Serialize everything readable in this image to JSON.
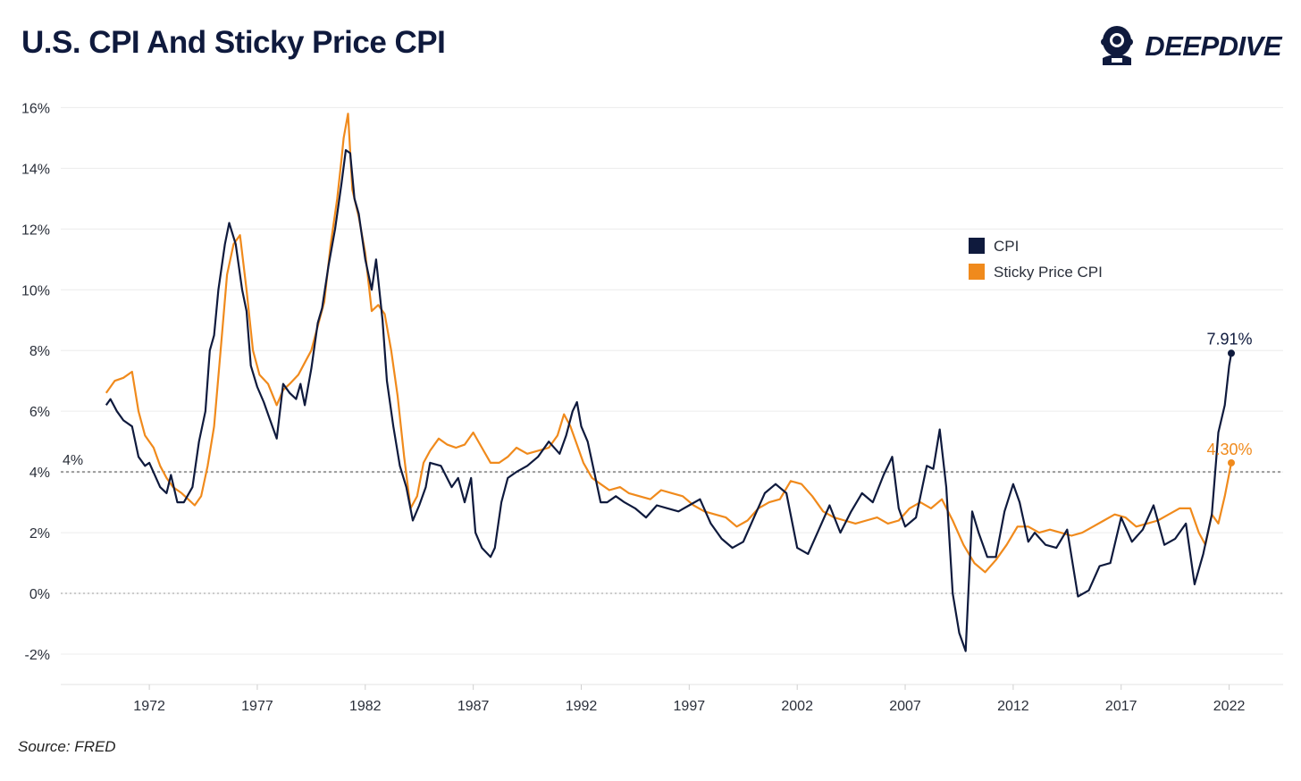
{
  "header": {
    "title": "U.S. CPI And Sticky Price CPI",
    "brand": "DEEPDIVE",
    "logo_icon": "diver-helmet-icon"
  },
  "footer": {
    "source": "Source: FRED"
  },
  "colors": {
    "cpi": "#0f1a3d",
    "sticky": "#f08a1c",
    "grid": "#ececec",
    "ref": "#9a9a9a"
  },
  "chart_data": {
    "type": "line",
    "title": "U.S. CPI And Sticky Price CPI",
    "xlabel": "",
    "ylabel": "",
    "xlim": [
      1967.9,
      2024.5
    ],
    "ylim": [
      -3,
      16.6
    ],
    "grid": true,
    "legend_position": "upper-right-inside",
    "x_ticks": [
      1972,
      1977,
      1982,
      1987,
      1992,
      1997,
      2002,
      2007,
      2012,
      2017,
      2022
    ],
    "y_ticks": [
      -2,
      0,
      2,
      4,
      6,
      8,
      10,
      12,
      14,
      16
    ],
    "y_tick_labels": [
      "-2%",
      "0%",
      "2%",
      "4%",
      "6%",
      "8%",
      "10%",
      "12%",
      "14%",
      "16%"
    ],
    "reference_lines": [
      {
        "y": 4,
        "label": "4%",
        "style": "dotted"
      },
      {
        "y": 0,
        "label": "",
        "style": "dotted"
      }
    ],
    "series": [
      {
        "name": "CPI",
        "color": "#0f1a3d",
        "end_label": "7.91%",
        "points": [
          [
            1970.0,
            6.2
          ],
          [
            1970.2,
            6.4
          ],
          [
            1970.5,
            6.0
          ],
          [
            1970.8,
            5.7
          ],
          [
            1971.2,
            5.5
          ],
          [
            1971.5,
            4.5
          ],
          [
            1971.8,
            4.2
          ],
          [
            1972.0,
            4.3
          ],
          [
            1972.5,
            3.5
          ],
          [
            1972.8,
            3.3
          ],
          [
            1973.0,
            3.9
          ],
          [
            1973.3,
            3.0
          ],
          [
            1973.6,
            3.0
          ],
          [
            1974.0,
            3.5
          ],
          [
            1974.3,
            5.0
          ],
          [
            1974.6,
            6.0
          ],
          [
            1974.8,
            8.0
          ],
          [
            1975.0,
            8.5
          ],
          [
            1975.2,
            10.0
          ],
          [
            1975.5,
            11.5
          ],
          [
            1975.7,
            12.2
          ],
          [
            1976.0,
            11.5
          ],
          [
            1976.3,
            10.0
          ],
          [
            1976.5,
            9.3
          ],
          [
            1976.7,
            7.5
          ],
          [
            1977.0,
            6.8
          ],
          [
            1977.3,
            6.3
          ],
          [
            1977.6,
            5.7
          ],
          [
            1977.9,
            5.1
          ],
          [
            1978.2,
            6.9
          ],
          [
            1978.5,
            6.6
          ],
          [
            1978.8,
            6.4
          ],
          [
            1979.0,
            6.9
          ],
          [
            1979.2,
            6.2
          ],
          [
            1979.5,
            7.4
          ],
          [
            1979.8,
            8.9
          ],
          [
            1980.0,
            9.4
          ],
          [
            1980.3,
            10.8
          ],
          [
            1980.6,
            12.0
          ],
          [
            1980.9,
            13.5
          ],
          [
            1981.1,
            14.6
          ],
          [
            1981.3,
            14.5
          ],
          [
            1981.5,
            13.0
          ],
          [
            1981.7,
            12.5
          ],
          [
            1982.0,
            11.0
          ],
          [
            1982.3,
            10.0
          ],
          [
            1982.5,
            11.0
          ],
          [
            1982.8,
            9.0
          ],
          [
            1983.0,
            7.0
          ],
          [
            1983.3,
            5.5
          ],
          [
            1983.6,
            4.2
          ],
          [
            1983.9,
            3.5
          ],
          [
            1984.2,
            2.4
          ],
          [
            1984.5,
            2.9
          ],
          [
            1984.8,
            3.5
          ],
          [
            1985.0,
            4.3
          ],
          [
            1985.5,
            4.2
          ],
          [
            1986.0,
            3.5
          ],
          [
            1986.3,
            3.8
          ],
          [
            1986.6,
            3.0
          ],
          [
            1986.9,
            3.8
          ],
          [
            1987.1,
            2.0
          ],
          [
            1987.4,
            1.5
          ],
          [
            1987.8,
            1.2
          ],
          [
            1988.0,
            1.5
          ],
          [
            1988.3,
            3.0
          ],
          [
            1988.6,
            3.8
          ],
          [
            1989.0,
            4.0
          ],
          [
            1989.5,
            4.2
          ],
          [
            1990.0,
            4.5
          ],
          [
            1990.5,
            5.0
          ],
          [
            1991.0,
            4.6
          ],
          [
            1991.3,
            5.2
          ],
          [
            1991.6,
            6.0
          ],
          [
            1991.8,
            6.3
          ],
          [
            1992.0,
            5.5
          ],
          [
            1992.3,
            5.0
          ],
          [
            1992.6,
            4.0
          ],
          [
            1992.9,
            3.0
          ],
          [
            1993.2,
            3.0
          ],
          [
            1993.6,
            3.2
          ],
          [
            1994.0,
            3.0
          ],
          [
            1994.5,
            2.8
          ],
          [
            1995.0,
            2.5
          ],
          [
            1995.5,
            2.9
          ],
          [
            1996.0,
            2.8
          ],
          [
            1996.5,
            2.7
          ],
          [
            1997.0,
            2.9
          ],
          [
            1997.5,
            3.1
          ],
          [
            1998.0,
            2.3
          ],
          [
            1998.5,
            1.8
          ],
          [
            1999.0,
            1.5
          ],
          [
            1999.5,
            1.7
          ],
          [
            2000.0,
            2.5
          ],
          [
            2000.5,
            3.3
          ],
          [
            2001.0,
            3.6
          ],
          [
            2001.5,
            3.3
          ],
          [
            2002.0,
            1.5
          ],
          [
            2002.5,
            1.3
          ],
          [
            2003.0,
            2.1
          ],
          [
            2003.5,
            2.9
          ],
          [
            2004.0,
            2.0
          ],
          [
            2004.5,
            2.7
          ],
          [
            2005.0,
            3.3
          ],
          [
            2005.5,
            3.0
          ],
          [
            2006.0,
            3.9
          ],
          [
            2006.4,
            4.5
          ],
          [
            2006.7,
            2.8
          ],
          [
            2007.0,
            2.2
          ],
          [
            2007.5,
            2.5
          ],
          [
            2008.0,
            4.2
          ],
          [
            2008.3,
            4.1
          ],
          [
            2008.6,
            5.4
          ],
          [
            2008.9,
            3.5
          ],
          [
            2009.2,
            0.0
          ],
          [
            2009.5,
            -1.3
          ],
          [
            2009.8,
            -1.9
          ],
          [
            2010.1,
            2.7
          ],
          [
            2010.4,
            2.0
          ],
          [
            2010.8,
            1.2
          ],
          [
            2011.2,
            1.2
          ],
          [
            2011.6,
            2.7
          ],
          [
            2012.0,
            3.6
          ],
          [
            2012.3,
            3.0
          ],
          [
            2012.7,
            1.7
          ],
          [
            2013.0,
            2.0
          ],
          [
            2013.5,
            1.6
          ],
          [
            2014.0,
            1.5
          ],
          [
            2014.5,
            2.1
          ],
          [
            2015.0,
            -0.1
          ],
          [
            2015.5,
            0.1
          ],
          [
            2016.0,
            0.9
          ],
          [
            2016.5,
            1.0
          ],
          [
            2017.0,
            2.5
          ],
          [
            2017.5,
            1.7
          ],
          [
            2018.0,
            2.1
          ],
          [
            2018.5,
            2.9
          ],
          [
            2019.0,
            1.6
          ],
          [
            2019.5,
            1.8
          ],
          [
            2020.0,
            2.3
          ],
          [
            2020.4,
            0.3
          ],
          [
            2020.8,
            1.3
          ],
          [
            2021.2,
            2.6
          ],
          [
            2021.5,
            5.3
          ],
          [
            2021.8,
            6.2
          ],
          [
            2022.0,
            7.5
          ],
          [
            2022.1,
            7.91
          ]
        ]
      },
      {
        "name": "Sticky Price CPI",
        "color": "#f08a1c",
        "end_label": "4.30%",
        "points": [
          [
            1970.0,
            6.6
          ],
          [
            1970.4,
            7.0
          ],
          [
            1970.8,
            7.1
          ],
          [
            1971.2,
            7.3
          ],
          [
            1971.5,
            6.0
          ],
          [
            1971.8,
            5.2
          ],
          [
            1972.2,
            4.8
          ],
          [
            1972.5,
            4.2
          ],
          [
            1972.8,
            3.8
          ],
          [
            1973.1,
            3.5
          ],
          [
            1973.5,
            3.3
          ],
          [
            1973.8,
            3.1
          ],
          [
            1974.1,
            2.9
          ],
          [
            1974.4,
            3.2
          ],
          [
            1974.7,
            4.2
          ],
          [
            1975.0,
            5.5
          ],
          [
            1975.3,
            8.0
          ],
          [
            1975.6,
            10.5
          ],
          [
            1975.9,
            11.5
          ],
          [
            1976.2,
            11.8
          ],
          [
            1976.5,
            10.0
          ],
          [
            1976.8,
            8.0
          ],
          [
            1977.1,
            7.2
          ],
          [
            1977.5,
            6.9
          ],
          [
            1977.9,
            6.2
          ],
          [
            1978.2,
            6.7
          ],
          [
            1978.5,
            6.9
          ],
          [
            1978.9,
            7.2
          ],
          [
            1979.2,
            7.6
          ],
          [
            1979.5,
            8.0
          ],
          [
            1979.8,
            8.8
          ],
          [
            1980.1,
            9.6
          ],
          [
            1980.4,
            11.5
          ],
          [
            1980.7,
            13.0
          ],
          [
            1980.9,
            14.3
          ],
          [
            1981.0,
            15.0
          ],
          [
            1981.2,
            15.8
          ],
          [
            1981.4,
            13.3
          ],
          [
            1981.7,
            12.4
          ],
          [
            1982.0,
            11.2
          ],
          [
            1982.3,
            9.3
          ],
          [
            1982.6,
            9.5
          ],
          [
            1982.9,
            9.2
          ],
          [
            1983.2,
            8.0
          ],
          [
            1983.5,
            6.5
          ],
          [
            1983.8,
            4.5
          ],
          [
            1984.1,
            2.8
          ],
          [
            1984.4,
            3.2
          ],
          [
            1984.7,
            4.3
          ],
          [
            1985.0,
            4.7
          ],
          [
            1985.4,
            5.1
          ],
          [
            1985.8,
            4.9
          ],
          [
            1986.2,
            4.8
          ],
          [
            1986.6,
            4.9
          ],
          [
            1987.0,
            5.3
          ],
          [
            1987.4,
            4.8
          ],
          [
            1987.8,
            4.3
          ],
          [
            1988.2,
            4.3
          ],
          [
            1988.6,
            4.5
          ],
          [
            1989.0,
            4.8
          ],
          [
            1989.5,
            4.6
          ],
          [
            1990.0,
            4.7
          ],
          [
            1990.5,
            4.8
          ],
          [
            1990.9,
            5.2
          ],
          [
            1991.2,
            5.9
          ],
          [
            1991.5,
            5.5
          ],
          [
            1991.8,
            4.9
          ],
          [
            1992.1,
            4.3
          ],
          [
            1992.5,
            3.8
          ],
          [
            1992.9,
            3.6
          ],
          [
            1993.3,
            3.4
          ],
          [
            1993.8,
            3.5
          ],
          [
            1994.2,
            3.3
          ],
          [
            1994.7,
            3.2
          ],
          [
            1995.2,
            3.1
          ],
          [
            1995.7,
            3.4
          ],
          [
            1996.2,
            3.3
          ],
          [
            1996.7,
            3.2
          ],
          [
            1997.2,
            2.9
          ],
          [
            1997.7,
            2.7
          ],
          [
            1998.2,
            2.6
          ],
          [
            1998.7,
            2.5
          ],
          [
            1999.2,
            2.2
          ],
          [
            1999.7,
            2.4
          ],
          [
            2000.2,
            2.8
          ],
          [
            2000.7,
            3.0
          ],
          [
            2001.2,
            3.1
          ],
          [
            2001.7,
            3.7
          ],
          [
            2002.2,
            3.6
          ],
          [
            2002.7,
            3.2
          ],
          [
            2003.2,
            2.7
          ],
          [
            2003.7,
            2.5
          ],
          [
            2004.2,
            2.4
          ],
          [
            2004.7,
            2.3
          ],
          [
            2005.2,
            2.4
          ],
          [
            2005.7,
            2.5
          ],
          [
            2006.2,
            2.3
          ],
          [
            2006.7,
            2.4
          ],
          [
            2007.2,
            2.8
          ],
          [
            2007.7,
            3.0
          ],
          [
            2008.2,
            2.8
          ],
          [
            2008.7,
            3.1
          ],
          [
            2009.2,
            2.4
          ],
          [
            2009.7,
            1.6
          ],
          [
            2010.2,
            1.0
          ],
          [
            2010.7,
            0.7
          ],
          [
            2011.2,
            1.1
          ],
          [
            2011.7,
            1.6
          ],
          [
            2012.2,
            2.2
          ],
          [
            2012.7,
            2.2
          ],
          [
            2013.2,
            2.0
          ],
          [
            2013.7,
            2.1
          ],
          [
            2014.2,
            2.0
          ],
          [
            2014.7,
            1.9
          ],
          [
            2015.2,
            2.0
          ],
          [
            2015.7,
            2.2
          ],
          [
            2016.2,
            2.4
          ],
          [
            2016.7,
            2.6
          ],
          [
            2017.2,
            2.5
          ],
          [
            2017.7,
            2.2
          ],
          [
            2018.2,
            2.3
          ],
          [
            2018.7,
            2.4
          ],
          [
            2019.2,
            2.6
          ],
          [
            2019.7,
            2.8
          ],
          [
            2020.2,
            2.8
          ],
          [
            2020.6,
            2.0
          ],
          [
            2020.9,
            1.6
          ],
          [
            2021.2,
            2.6
          ],
          [
            2021.5,
            2.3
          ],
          [
            2021.8,
            3.2
          ],
          [
            2022.1,
            4.3
          ]
        ]
      }
    ]
  }
}
